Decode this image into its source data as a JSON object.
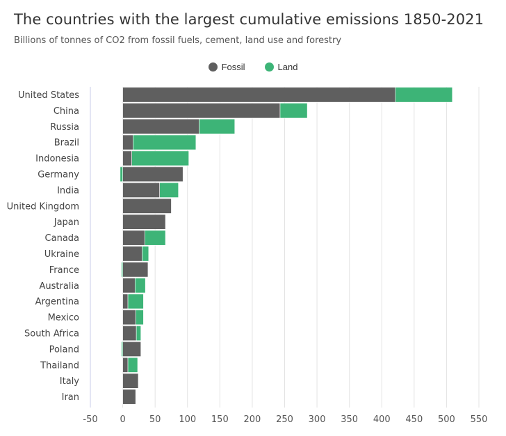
{
  "chart_data": {
    "type": "bar",
    "orientation": "horizontal",
    "stacked": true,
    "title": "The countries with the largest cumulative emissions 1850-2021",
    "subtitle": "Billions of tonnes of CO2 from fossil fuels, cement, land use and forestry",
    "xlabel": "",
    "ylabel": "",
    "xlim": [
      -50,
      550
    ],
    "xticks": [
      -50,
      0,
      50,
      100,
      150,
      200,
      250,
      300,
      350,
      400,
      450,
      500,
      550
    ],
    "grid": true,
    "legend_position": "top-center",
    "categories": [
      "United States",
      "China",
      "Russia",
      "Brazil",
      "Indonesia",
      "Germany",
      "India",
      "United Kingdom",
      "Japan",
      "Canada",
      "Ukraine",
      "France",
      "Australia",
      "Argentina",
      "Mexico",
      "South Africa",
      "Poland",
      "Thailand",
      "Italy",
      "Iran"
    ],
    "series": [
      {
        "name": "Fossil",
        "color": "#5f5f5f",
        "values": [
          421,
          243,
          118,
          16,
          14,
          93,
          57,
          75,
          66,
          34,
          30,
          39,
          19,
          8,
          20,
          21,
          28,
          8,
          24,
          20
        ]
      },
      {
        "name": "Land",
        "color": "#3db477",
        "values": [
          88,
          42,
          55,
          97,
          88,
          -4,
          29,
          0,
          0,
          32,
          10,
          -2,
          16,
          24,
          12,
          7,
          -2,
          15,
          0,
          0
        ]
      }
    ]
  }
}
